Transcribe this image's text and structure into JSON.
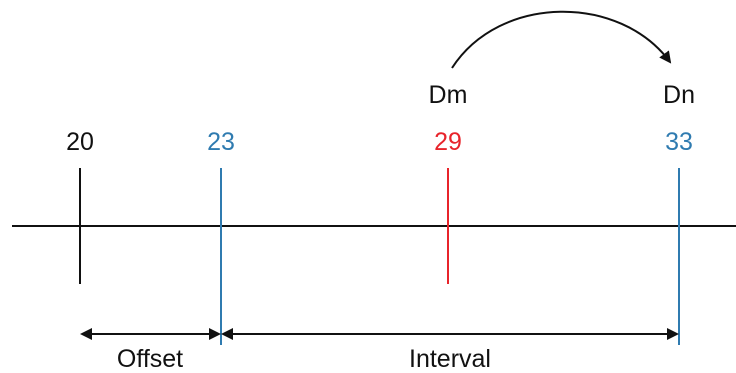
{
  "colors": {
    "black": "#111111",
    "blue": "#2f7bb0",
    "red": "#e8242b"
  },
  "ticks": [
    {
      "label": "20",
      "color": "black"
    },
    {
      "label": "23",
      "color": "blue"
    },
    {
      "label": "29",
      "color": "red"
    },
    {
      "label": "33",
      "color": "blue"
    }
  ],
  "move": {
    "from": "Dm",
    "to": "Dn"
  },
  "spans": {
    "offset": "Offset",
    "interval": "Interval"
  }
}
